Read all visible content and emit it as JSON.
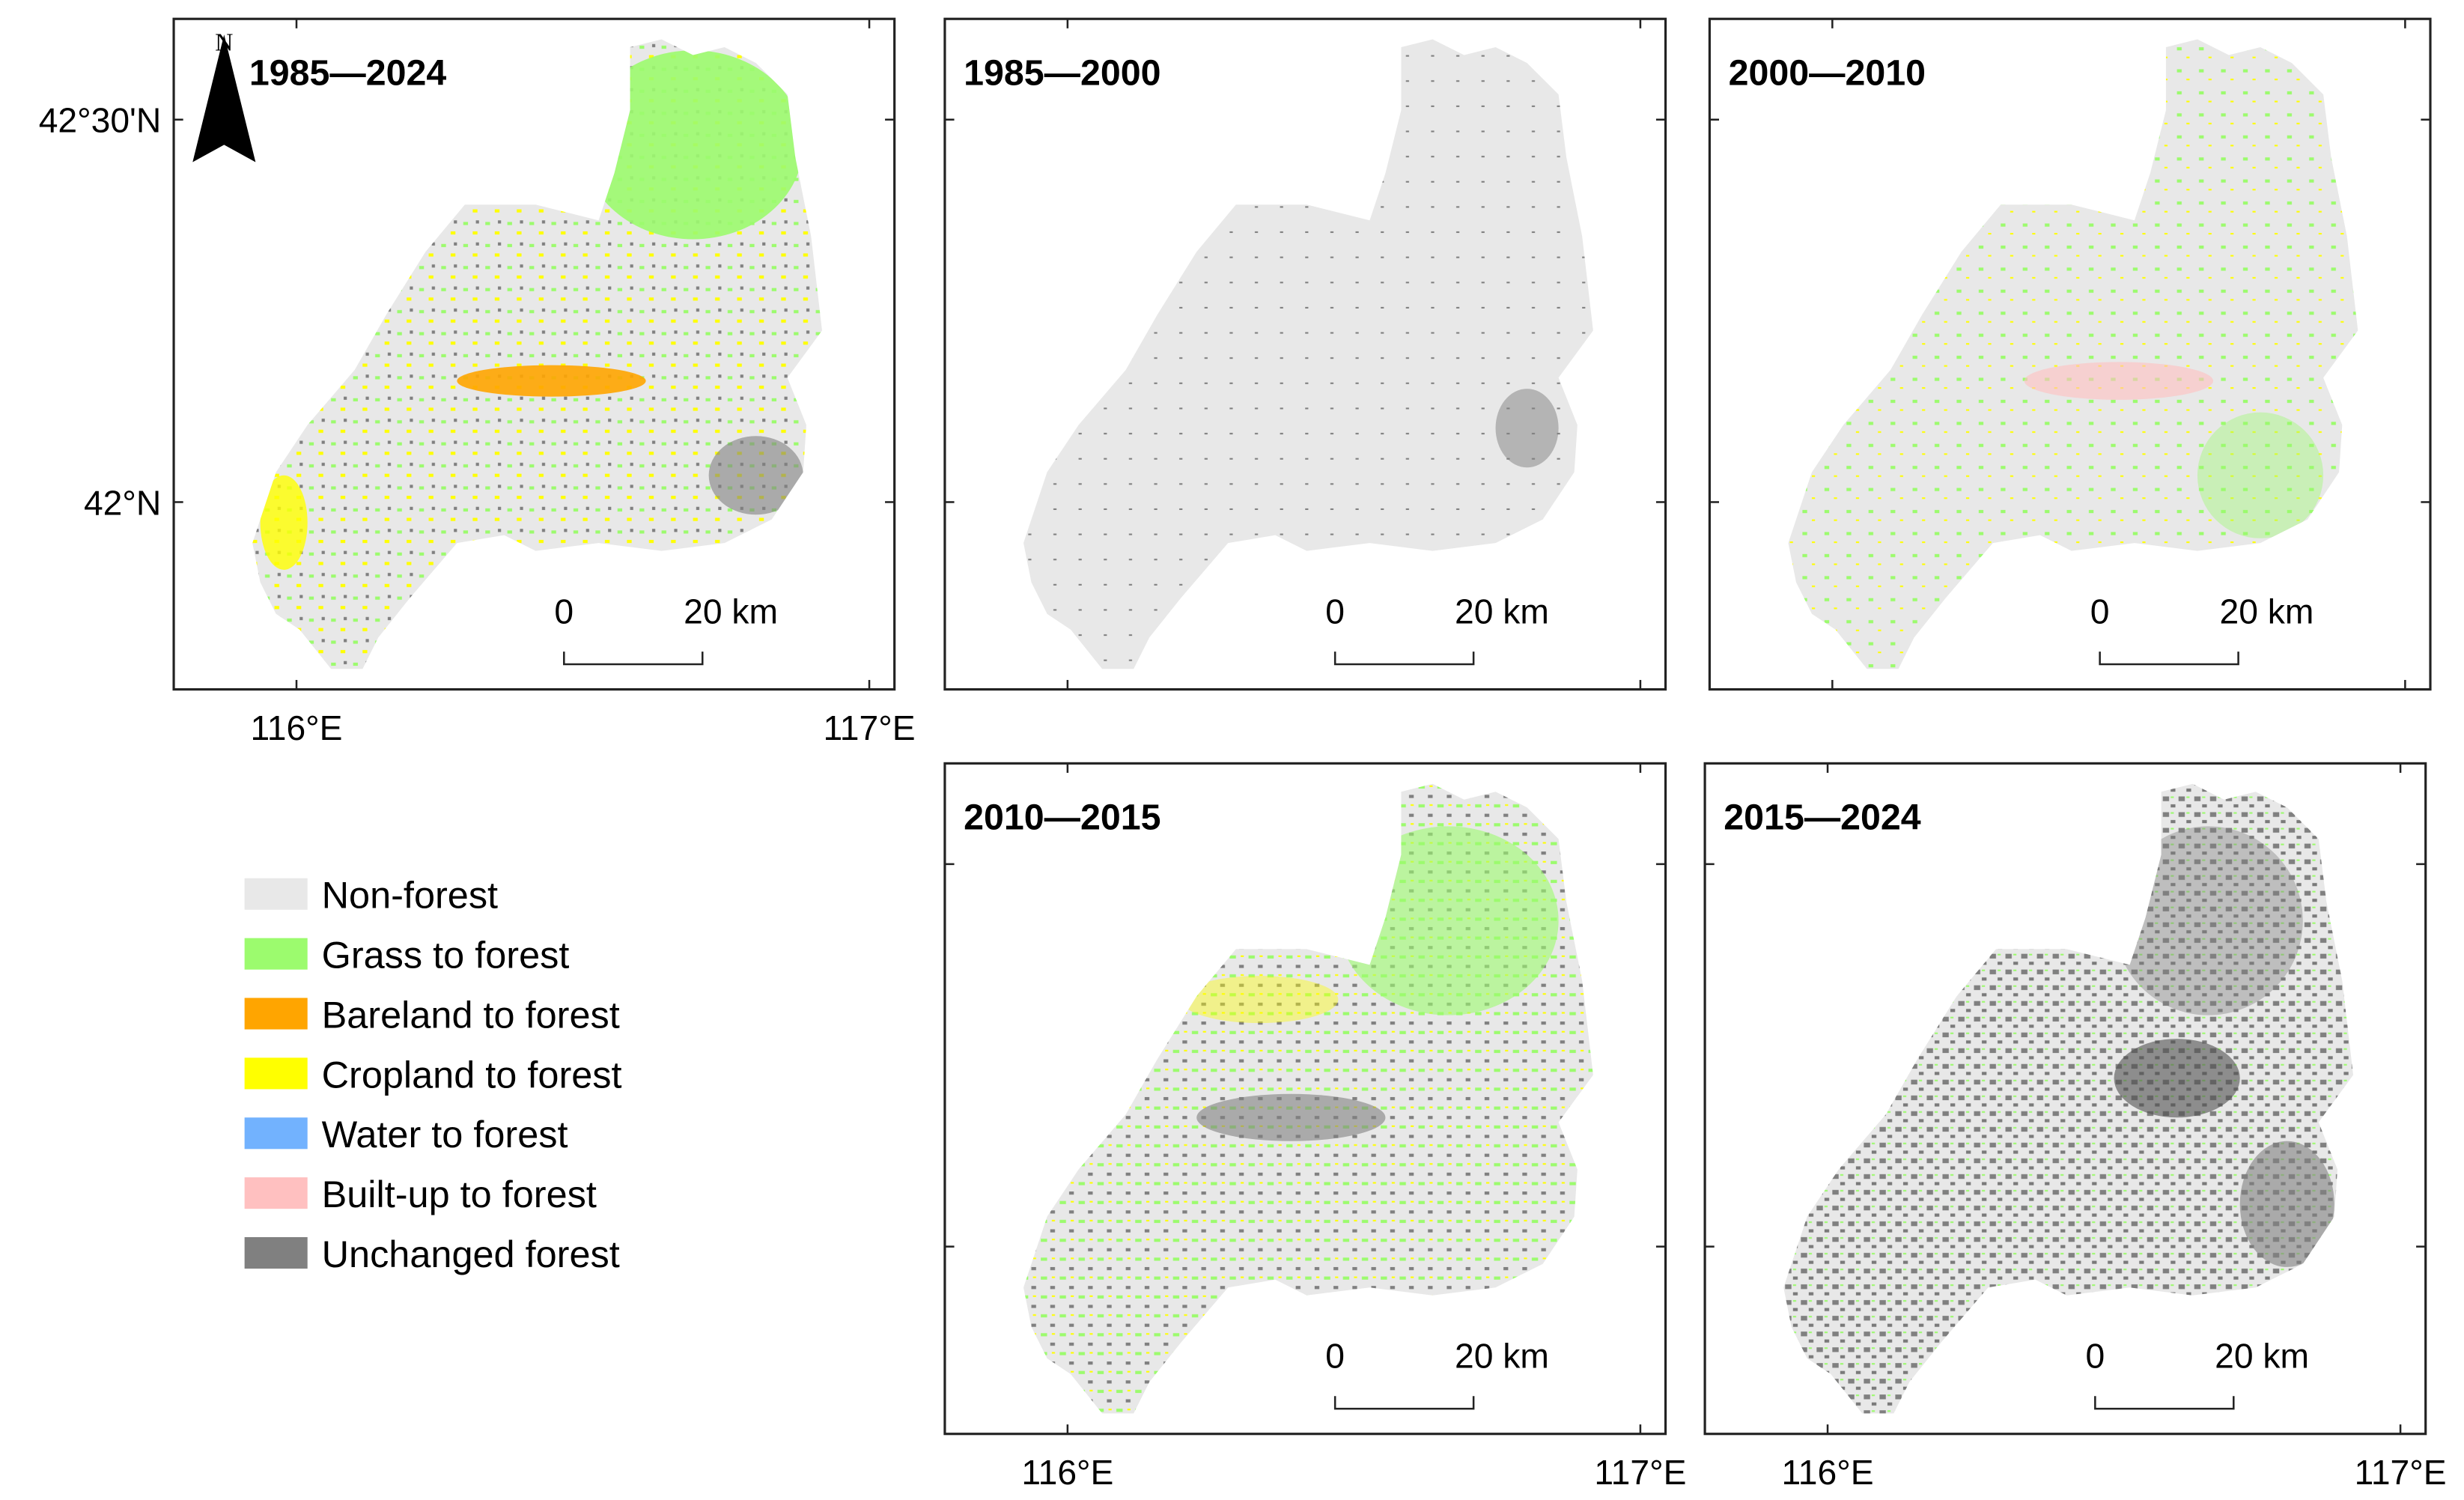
{
  "north_arrow": "N",
  "y_axis_labels": [
    "42°30'N",
    "42°N"
  ],
  "x_axis_labels": [
    "116°E",
    "117°E"
  ],
  "panels": [
    {
      "title": "1985—2024",
      "scale_start": "0",
      "scale_end": "20 km"
    },
    {
      "title": "1985—2000",
      "scale_start": "0",
      "scale_end": "20 km"
    },
    {
      "title": "2000—2010",
      "scale_start": "0",
      "scale_end": "20 km"
    },
    {
      "title": "2010—2015",
      "scale_start": "0",
      "scale_end": "20 km"
    },
    {
      "title": "2015—2024",
      "scale_start": "0",
      "scale_end": "20 km"
    }
  ],
  "legend": [
    {
      "label": "Non-forest",
      "color": "#e8e8e8"
    },
    {
      "label": "Grass to forest",
      "color": "#9cfb6e"
    },
    {
      "label": "Bareland to forest",
      "color": "#ffa500"
    },
    {
      "label": "Cropland to forest",
      "color": "#ffff00"
    },
    {
      "label": "Water to forest",
      "color": "#72b2fe"
    },
    {
      "label": "Built-up to forest",
      "color": "#ffc0c0"
    },
    {
      "label": "Unchanged forest",
      "color": "#808080"
    }
  ]
}
